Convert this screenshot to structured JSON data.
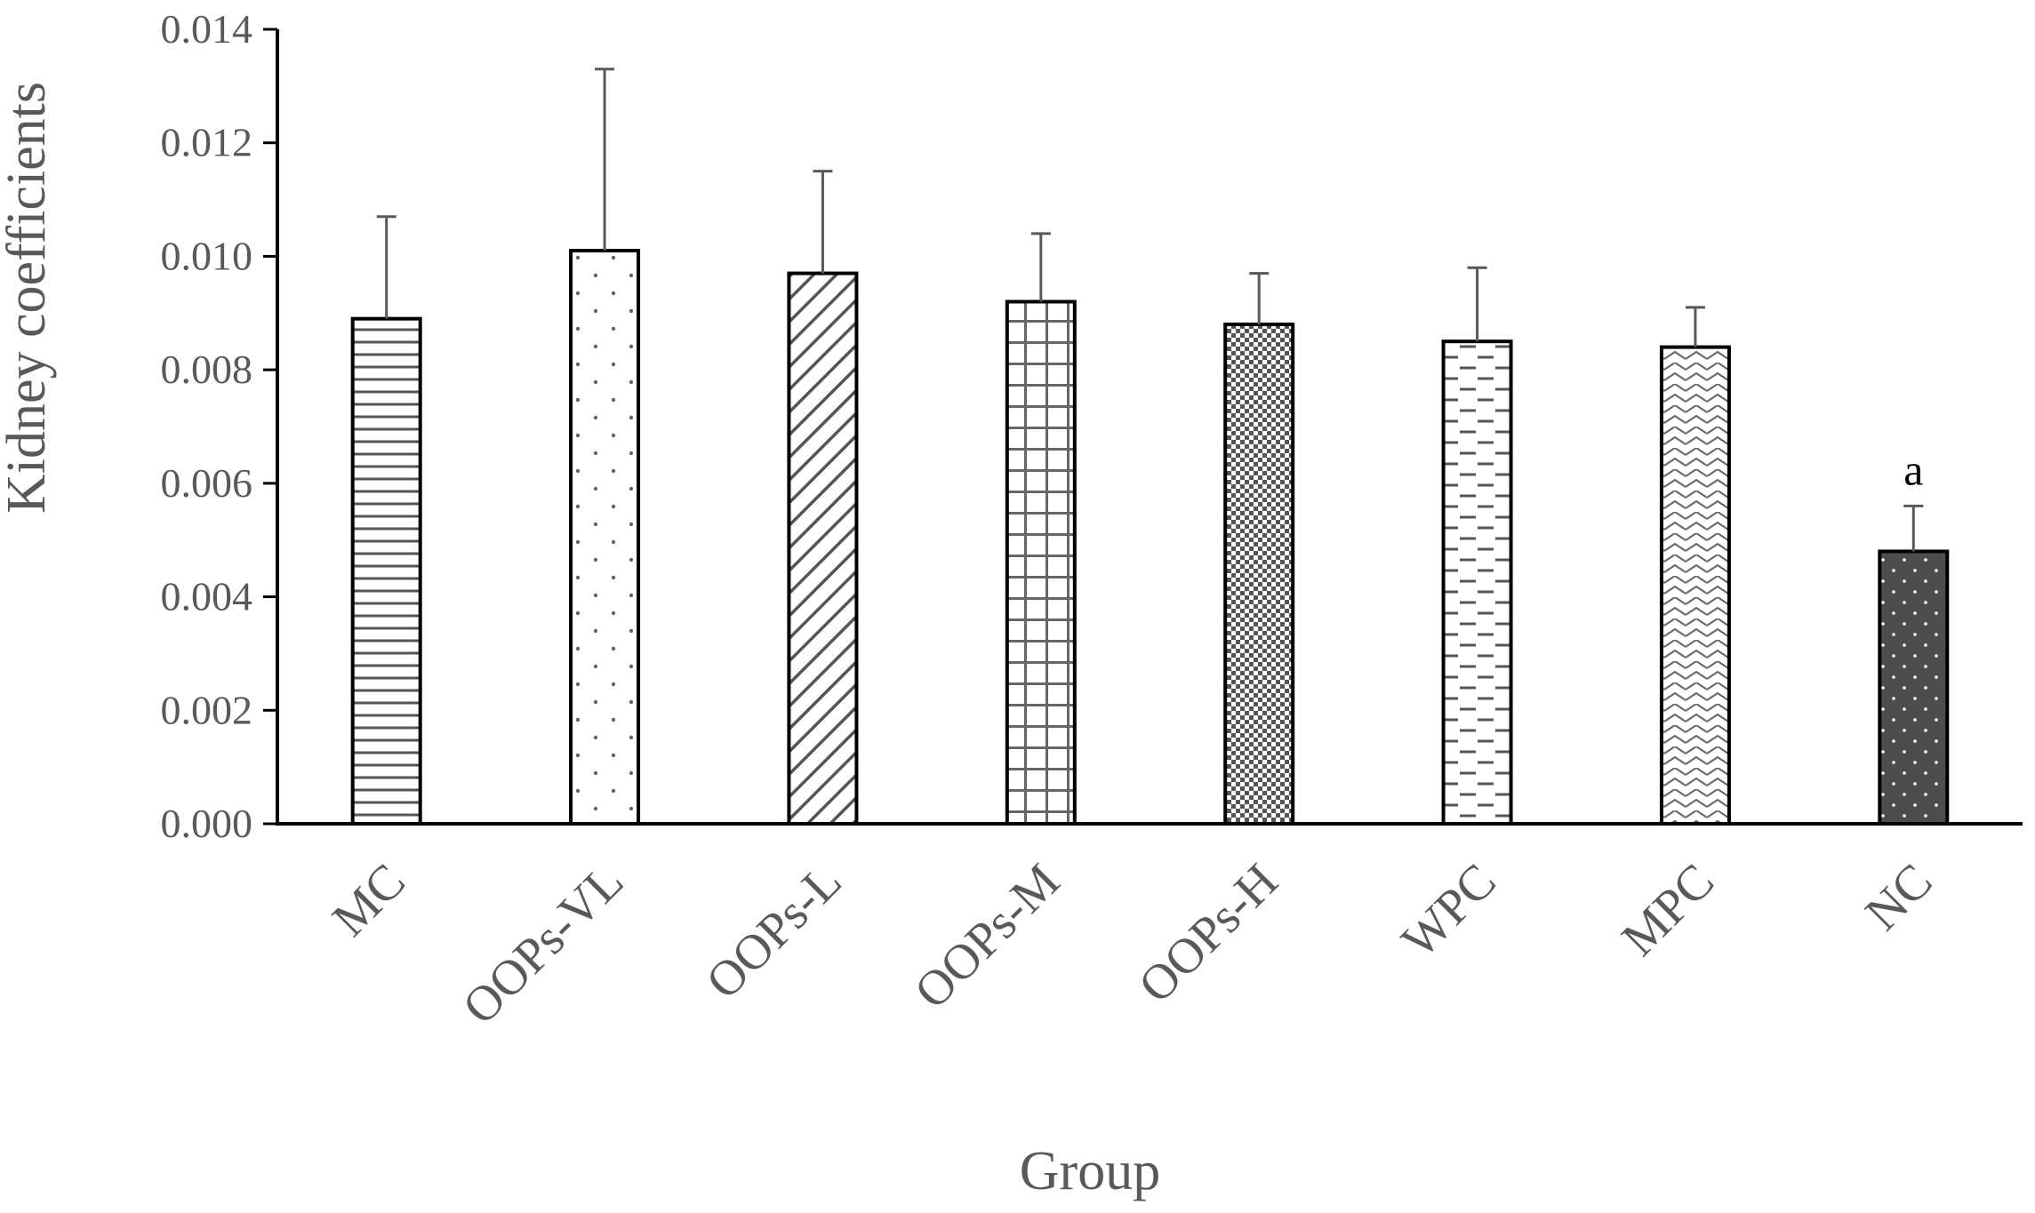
{
  "chart_data": {
    "type": "bar",
    "categories": [
      "MC",
      "OOPs-VL",
      "OOPs-L",
      "OOPs-M",
      "OOPs-H",
      "WPC",
      "MPC",
      "NC"
    ],
    "values": [
      0.0089,
      0.0101,
      0.0097,
      0.0092,
      0.0088,
      0.0085,
      0.0084,
      0.0048
    ],
    "errors": [
      0.0018,
      0.0032,
      0.0018,
      0.0012,
      0.0009,
      0.0013,
      0.0007,
      0.0008
    ],
    "patterns": [
      "horizontal-lines",
      "sparse-dots",
      "diagonal-hatch",
      "grid",
      "dense-check",
      "dashes",
      "zigzag",
      "dark-dotted"
    ],
    "annotations": [
      "",
      "",
      "",
      "",
      "",
      "",
      "",
      "a"
    ],
    "xlabel": "Group",
    "ylabel": "Kidney coefficients",
    "ylim": [
      0,
      0.014
    ],
    "yticks": [
      "0.000",
      "0.002",
      "0.004",
      "0.006",
      "0.008",
      "0.010",
      "0.012",
      "0.014"
    ],
    "grid": false,
    "legend": "none",
    "colors": {
      "axis": "#000000",
      "text": "#595959",
      "bar_fill": "#ffffff",
      "bar_stroke": "#000000",
      "dark_fill": "#4d4d4d",
      "error_bar": "#595959"
    }
  }
}
